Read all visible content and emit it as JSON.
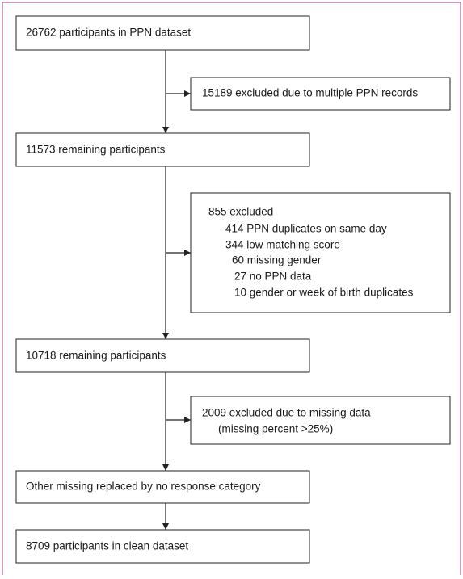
{
  "steps": [
    {
      "label": "26762 participants in PPN dataset"
    },
    {
      "label": "11573 remaining participants"
    },
    {
      "label": "10718 remaining participants"
    },
    {
      "label": "Other missing replaced by no response category"
    },
    {
      "label": "8709 participants in clean dataset"
    }
  ],
  "exclusions": [
    {
      "lines": [
        "15189 excluded due to multiple PPN records"
      ]
    },
    {
      "lines": [
        "855 excluded",
        "414 PPN duplicates on same day",
        "344 low matching score",
        "60 missing gender",
        "27 no PPN data",
        "10 gender or week of birth duplicates"
      ]
    },
    {
      "lines": [
        "2009 excluded due to missing data",
        "(missing percent >25%)"
      ]
    }
  ]
}
